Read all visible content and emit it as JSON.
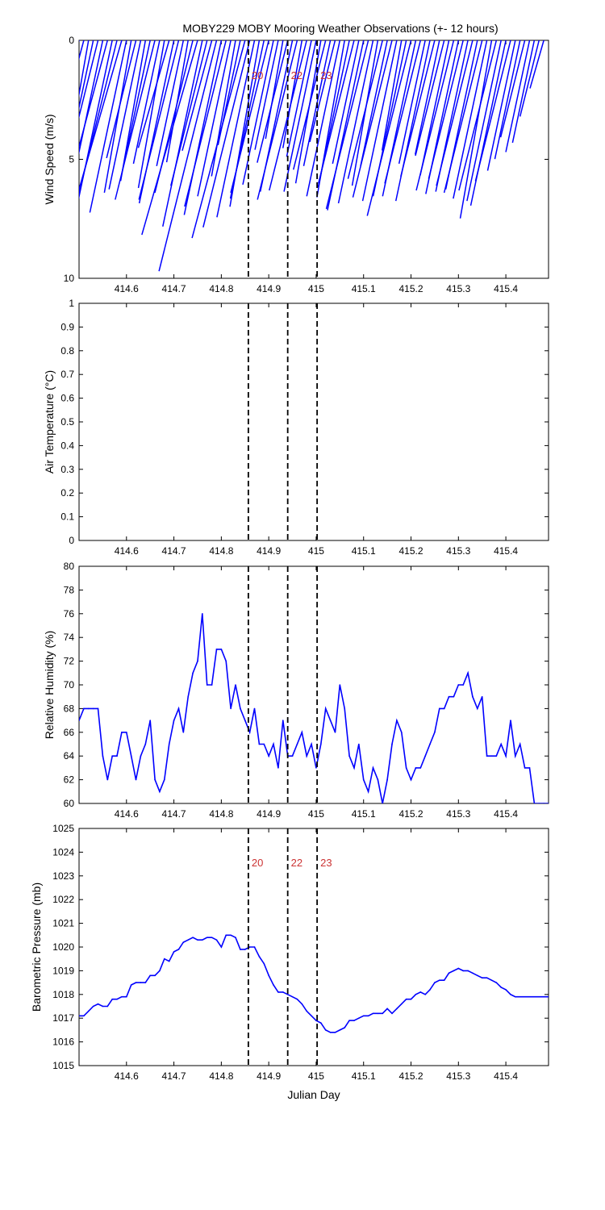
{
  "figure": {
    "title": "MOBY229 MOBY Mooring Weather Observations (+- 12 hours)",
    "background": "#ffffff"
  },
  "colors": {
    "series": "#0000ff",
    "marker_line": "#000000",
    "marker_label": "#cc3333",
    "axes": "#000000"
  },
  "markers": {
    "x": [
      414.857,
      414.94,
      415.002
    ],
    "labels": [
      "20",
      "22",
      "23"
    ]
  },
  "chart_data": [
    {
      "type": "line",
      "subtype": "wind-vectors",
      "title": "MOBY229 MOBY Mooring Weather Observations (+- 12 hours)",
      "xlabel": "",
      "ylabel": "Wind Speed (m/s)",
      "xlim": [
        414.5,
        415.49
      ],
      "ylim": [
        10,
        0
      ],
      "y_reversed": true,
      "xticks": [
        "414.6",
        "414.7",
        "414.8",
        "414.9",
        "415",
        "415.1",
        "415.2",
        "415.3",
        "415.4"
      ],
      "yticks": [
        "0",
        "5",
        "10"
      ],
      "grid": false,
      "marker_labels_shown": true,
      "x": [
        414.5,
        414.51,
        414.52,
        414.53,
        414.54,
        414.55,
        414.56,
        414.57,
        414.58,
        414.59,
        414.6,
        414.61,
        414.62,
        414.63,
        414.64,
        414.65,
        414.66,
        414.67,
        414.68,
        414.69,
        414.7,
        414.71,
        414.72,
        414.73,
        414.74,
        414.75,
        414.76,
        414.77,
        414.78,
        414.79,
        414.8,
        414.81,
        414.82,
        414.83,
        414.84,
        414.85,
        414.86,
        414.87,
        414.88,
        414.89,
        414.9,
        414.91,
        414.92,
        414.93,
        414.94,
        414.95,
        414.96,
        414.97,
        414.98,
        414.99,
        415.0,
        415.01,
        415.02,
        415.03,
        415.04,
        415.05,
        415.06,
        415.07,
        415.08,
        415.09,
        415.1,
        415.11,
        415.12,
        415.13,
        415.14,
        415.15,
        415.16,
        415.17,
        415.18,
        415.19,
        415.2,
        415.21,
        415.22,
        415.23,
        415.24,
        415.25,
        415.26,
        415.27,
        415.28,
        415.29,
        415.3,
        415.31,
        415.32,
        415.33,
        415.34,
        415.35,
        415.36,
        415.37,
        415.38,
        415.39,
        415.4,
        415.41,
        415.42,
        415.43,
        415.44,
        415.45,
        415.46,
        415.47,
        415.48
      ],
      "speed": [
        0.5,
        2.5,
        4.5,
        5.4,
        6.3,
        6.4,
        8.8,
        7.8,
        6.8,
        8.9,
        7.4,
        6.5,
        5.1,
        6.4,
        6.0,
        5.9,
        6.9,
        5.3,
        6.3,
        4.7,
        7.0,
        6.9,
        5.4,
        5.2,
        6.6,
        8.5,
        8.0,
        6.3,
        4.8,
        10.0,
        7.5,
        7.2,
        6.7,
        5.8,
        4.5,
        8.6,
        8.1,
        7.6,
        7.1,
        6.8,
        6.6,
        6.2,
        4.7,
        4.2,
        5.3,
        6.5,
        6.9,
        4.6,
        6.5,
        5.0,
        6.5,
        6.1,
        5.6,
        5.4,
        4.4,
        6.7,
        6.7,
        6.3,
        6.2,
        5.3,
        7.3,
        7.3,
        7.0,
        6.2,
        6.0,
        5.4,
        6.8,
        6.9,
        4.7,
        6.7,
        7.6,
        6.7,
        6.2,
        5.3,
        6.9,
        5.9,
        4.9,
        5.0,
        5.8,
        6.5,
        6.6,
        6.0,
        6.5,
        6.3,
        6.4,
        6.6,
        6.8,
        7.6,
        6.5,
        6.9,
        7.1,
        6.1,
        5.6,
        5.1,
        4.2,
        4.8,
        4.4,
        3.3,
        2.1
      ],
      "direction_deg": [
        20,
        15,
        10,
        12,
        14,
        12,
        15,
        12,
        14,
        16,
        12,
        10,
        14,
        12,
        10,
        12,
        14,
        12,
        10,
        16,
        12,
        14,
        12,
        10,
        14,
        16,
        12,
        14,
        15,
        14,
        12,
        14,
        12,
        10,
        12,
        15,
        14,
        12,
        10,
        12,
        14,
        12,
        12,
        10,
        14,
        12,
        14,
        10,
        14,
        12,
        12,
        10,
        14,
        12,
        14,
        12,
        10,
        12,
        14,
        12,
        12,
        14,
        12,
        10,
        14,
        12,
        14,
        12,
        10,
        12,
        14,
        12,
        14,
        12,
        12,
        14,
        12,
        14,
        12,
        14,
        12,
        14,
        12,
        14,
        12,
        14,
        12,
        10,
        14,
        12,
        12,
        14,
        12,
        12,
        14,
        12,
        12,
        14,
        16
      ]
    },
    {
      "type": "line",
      "title": "",
      "xlabel": "",
      "ylabel": "Air Temperature (°C)",
      "xlim": [
        414.5,
        415.49
      ],
      "ylim": [
        0,
        1
      ],
      "xticks": [
        "414.6",
        "414.7",
        "414.8",
        "414.9",
        "415",
        "415.1",
        "415.2",
        "415.3",
        "415.4"
      ],
      "yticks": [
        "0",
        "0.1",
        "0.2",
        "0.3",
        "0.4",
        "0.5",
        "0.6",
        "0.7",
        "0.8",
        "0.9",
        "1"
      ],
      "grid": false,
      "marker_labels_shown": false,
      "x": [],
      "y": []
    },
    {
      "type": "line",
      "title": "",
      "xlabel": "",
      "ylabel": "Relative Humidity (%)",
      "xlim": [
        414.5,
        415.49
      ],
      "ylim": [
        60,
        80
      ],
      "xticks": [
        "414.6",
        "414.7",
        "414.8",
        "414.9",
        "415",
        "415.1",
        "415.2",
        "415.3",
        "415.4"
      ],
      "yticks": [
        "60",
        "62",
        "64",
        "66",
        "68",
        "70",
        "72",
        "74",
        "76",
        "78",
        "80"
      ],
      "grid": false,
      "marker_labels_shown": false,
      "x": [
        414.5,
        414.51,
        414.52,
        414.53,
        414.54,
        414.55,
        414.56,
        414.57,
        414.58,
        414.59,
        414.6,
        414.61,
        414.62,
        414.63,
        414.64,
        414.65,
        414.66,
        414.67,
        414.68,
        414.69,
        414.7,
        414.71,
        414.72,
        414.73,
        414.74,
        414.75,
        414.76,
        414.77,
        414.78,
        414.79,
        414.8,
        414.81,
        414.82,
        414.83,
        414.84,
        414.85,
        414.86,
        414.87,
        414.88,
        414.89,
        414.9,
        414.91,
        414.92,
        414.93,
        414.94,
        414.95,
        414.96,
        414.97,
        414.98,
        414.99,
        415.0,
        415.01,
        415.02,
        415.03,
        415.04,
        415.05,
        415.06,
        415.07,
        415.08,
        415.09,
        415.1,
        415.11,
        415.12,
        415.13,
        415.14,
        415.15,
        415.16,
        415.17,
        415.18,
        415.19,
        415.2,
        415.21,
        415.22,
        415.23,
        415.24,
        415.25,
        415.26,
        415.27,
        415.28,
        415.29,
        415.3,
        415.31,
        415.32,
        415.33,
        415.34,
        415.35,
        415.36,
        415.37,
        415.38,
        415.39,
        415.4,
        415.41,
        415.42,
        415.43,
        415.44,
        415.45,
        415.46,
        415.47,
        415.48,
        415.49
      ],
      "y": [
        67,
        68,
        68,
        68,
        68,
        64,
        62,
        64,
        64,
        66,
        66,
        64,
        62,
        64,
        65,
        67,
        62,
        61,
        62,
        65,
        67,
        68,
        66,
        69,
        71,
        72,
        76,
        70,
        70,
        73,
        73,
        72,
        68,
        70,
        68,
        67,
        66,
        68,
        65,
        65,
        64,
        65,
        63,
        67,
        64,
        64,
        65,
        66,
        64,
        65,
        63,
        65,
        68,
        67,
        66,
        70,
        68,
        64,
        63,
        65,
        62,
        61,
        63,
        62,
        60,
        62,
        65,
        67,
        66,
        63,
        62,
        63,
        63,
        64,
        65,
        66,
        68,
        68,
        69,
        69,
        70,
        70,
        71,
        69,
        68,
        69,
        64,
        64,
        64,
        65,
        64,
        67,
        64,
        65,
        63,
        63,
        60,
        60,
        60,
        60
      ],
      "note": ""
    },
    {
      "type": "line",
      "title": "",
      "xlabel": "Julian Day",
      "ylabel": "Barometric Pressure (mb)",
      "xlim": [
        414.5,
        415.49
      ],
      "ylim": [
        1015,
        1025
      ],
      "xticks": [
        "414.6",
        "414.7",
        "414.8",
        "414.9",
        "415",
        "415.1",
        "415.2",
        "415.3",
        "415.4"
      ],
      "yticks": [
        "1015",
        "1016",
        "1017",
        "1018",
        "1019",
        "1020",
        "1021",
        "1022",
        "1023",
        "1024",
        "1025"
      ],
      "grid": false,
      "marker_labels_shown": true,
      "x": [
        414.5,
        414.51,
        414.52,
        414.53,
        414.54,
        414.55,
        414.56,
        414.57,
        414.58,
        414.59,
        414.6,
        414.61,
        414.62,
        414.63,
        414.64,
        414.65,
        414.66,
        414.67,
        414.68,
        414.69,
        414.7,
        414.71,
        414.72,
        414.73,
        414.74,
        414.75,
        414.76,
        414.77,
        414.78,
        414.79,
        414.8,
        414.81,
        414.82,
        414.83,
        414.84,
        414.85,
        414.86,
        414.87,
        414.88,
        414.89,
        414.9,
        414.91,
        414.92,
        414.93,
        414.94,
        414.95,
        414.96,
        414.97,
        414.98,
        414.99,
        415.0,
        415.01,
        415.02,
        415.03,
        415.04,
        415.05,
        415.06,
        415.07,
        415.08,
        415.09,
        415.1,
        415.11,
        415.12,
        415.13,
        415.14,
        415.15,
        415.16,
        415.17,
        415.18,
        415.19,
        415.2,
        415.21,
        415.22,
        415.23,
        415.24,
        415.25,
        415.26,
        415.27,
        415.28,
        415.29,
        415.3,
        415.31,
        415.32,
        415.33,
        415.34,
        415.35,
        415.36,
        415.37,
        415.38,
        415.39,
        415.4,
        415.41,
        415.42,
        415.43,
        415.44,
        415.45,
        415.46,
        415.47,
        415.48,
        415.49
      ],
      "y": [
        1017.1,
        1017.1,
        1017.3,
        1017.5,
        1017.6,
        1017.5,
        1017.5,
        1017.8,
        1017.8,
        1017.9,
        1017.9,
        1018.4,
        1018.5,
        1018.5,
        1018.5,
        1018.8,
        1018.8,
        1019.0,
        1019.5,
        1019.4,
        1019.8,
        1019.9,
        1020.2,
        1020.3,
        1020.4,
        1020.3,
        1020.3,
        1020.4,
        1020.4,
        1020.3,
        1020.0,
        1020.5,
        1020.5,
        1020.4,
        1019.9,
        1019.9,
        1020.0,
        1020.0,
        1019.6,
        1019.3,
        1018.8,
        1018.4,
        1018.1,
        1018.1,
        1018.0,
        1017.9,
        1017.8,
        1017.6,
        1017.3,
        1017.1,
        1016.9,
        1016.8,
        1016.5,
        1016.4,
        1016.4,
        1016.5,
        1016.6,
        1016.9,
        1016.9,
        1017.0,
        1017.1,
        1017.1,
        1017.2,
        1017.2,
        1017.2,
        1017.4,
        1017.2,
        1017.4,
        1017.6,
        1017.8,
        1017.8,
        1018.0,
        1018.1,
        1018.0,
        1018.2,
        1018.5,
        1018.6,
        1018.6,
        1018.9,
        1019.0,
        1019.1,
        1019.0,
        1019.0,
        1018.9,
        1018.8,
        1018.7,
        1018.7,
        1018.6,
        1018.5,
        1018.3,
        1018.2,
        1018.0,
        1017.9,
        1017.9,
        1017.9,
        1017.9,
        1017.9,
        1017.9,
        1017.9,
        1017.9
      ]
    }
  ]
}
